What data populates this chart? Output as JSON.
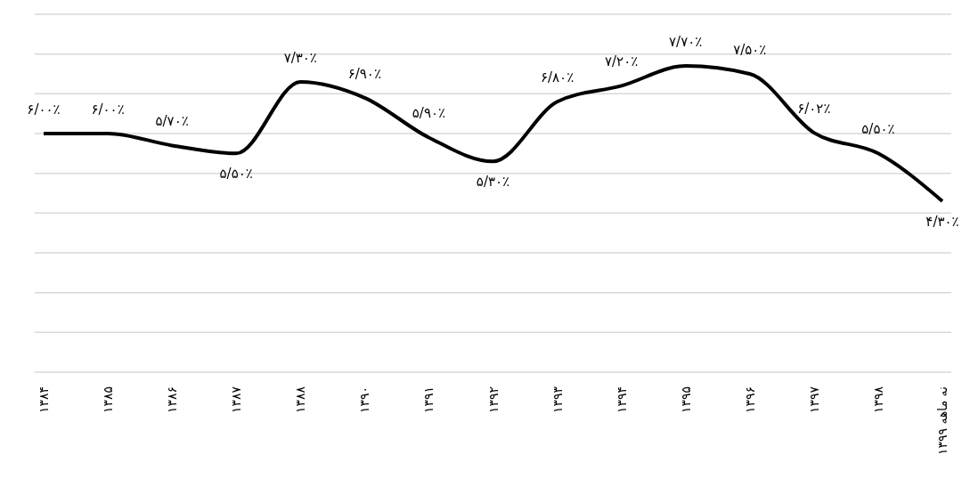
{
  "chart_data": {
    "type": "line",
    "categories": [
      "۱۳۸۴",
      "۱۳۸۵",
      "۱۳۸۶",
      "۱۳۸۷",
      "۱۳۸۸",
      "۱۳۹۰",
      "۱۳۹۱",
      "۱۳۹۲",
      "۱۳۹۳",
      "۱۳۹۴",
      "۱۳۹۵",
      "۱۳۹۶",
      "۱۳۹۷",
      "۱۳۹۸",
      "نه ماهه ۱۳۹۹"
    ],
    "series": [
      {
        "color": "#000000",
        "values": [
          6.0,
          6.0,
          5.7,
          5.5,
          7.3,
          6.9,
          5.9,
          5.3,
          6.8,
          7.2,
          7.7,
          7.5,
          6.02,
          5.5,
          4.3
        ],
        "value_labels": [
          "۶/۰۰٪",
          "۶/۰۰٪",
          "۵/۷۰٪",
          "۵/۵۰٪",
          "۷/۳۰٪",
          "۶/۹۰٪",
          "۵/۹۰٪",
          "۵/۳۰٪",
          "۶/۸۰٪",
          "۷/۲۰٪",
          "۷/۷۰٪",
          "۷/۵۰٪",
          "۶/۰۲٪",
          "۵/۵۰٪",
          "۴/۳۰٪"
        ]
      }
    ],
    "ylim": [
      0,
      9
    ],
    "yticks": [
      {
        "value": 0,
        "label": null
      },
      {
        "value": 1,
        "label": null
      },
      {
        "value": 2,
        "label": null
      },
      {
        "value": 3,
        "label": null
      },
      {
        "value": 4,
        "label": null
      },
      {
        "value": 5,
        "label": null
      },
      {
        "value": 6,
        "label": null
      },
      {
        "value": 7,
        "label": null
      },
      {
        "value": 8,
        "label": null
      },
      {
        "value": 9,
        "label": null
      }
    ],
    "grid": "y",
    "tick_labels": "x",
    "legend": false,
    "marker": "none",
    "line_style": "solid"
  }
}
